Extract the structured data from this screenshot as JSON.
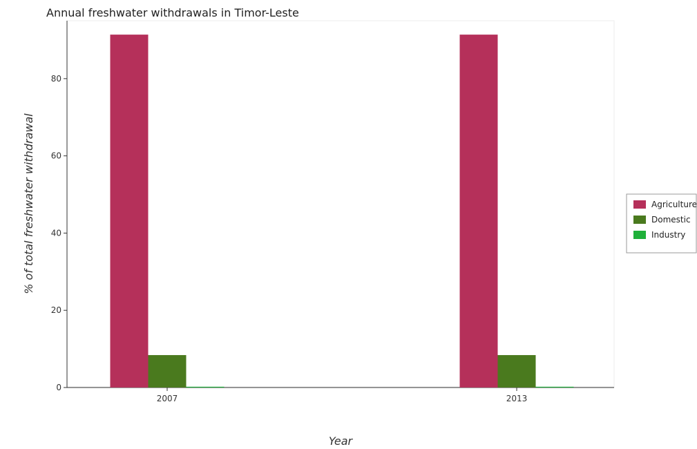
{
  "chart_data": {
    "type": "bar",
    "title": "Annual freshwater withdrawals in Timor-Leste",
    "xlabel": "Year",
    "ylabel": "% of total freshwater withdrawal",
    "categories": [
      "2007",
      "2013"
    ],
    "ylim": [
      0,
      95
    ],
    "yticks": [
      "0",
      "20",
      "40",
      "60",
      "80"
    ],
    "grid": false,
    "legend_position": "right",
    "series": [
      {
        "name": "Agriculture",
        "color": "#b5305a",
        "values": [
          91.4,
          91.4
        ]
      },
      {
        "name": "Domestic",
        "color": "#4a7a1e",
        "values": [
          8.4,
          8.4
        ]
      },
      {
        "name": "Industry",
        "color": "#1fb03a",
        "values": [
          0.2,
          0.2
        ]
      }
    ]
  }
}
